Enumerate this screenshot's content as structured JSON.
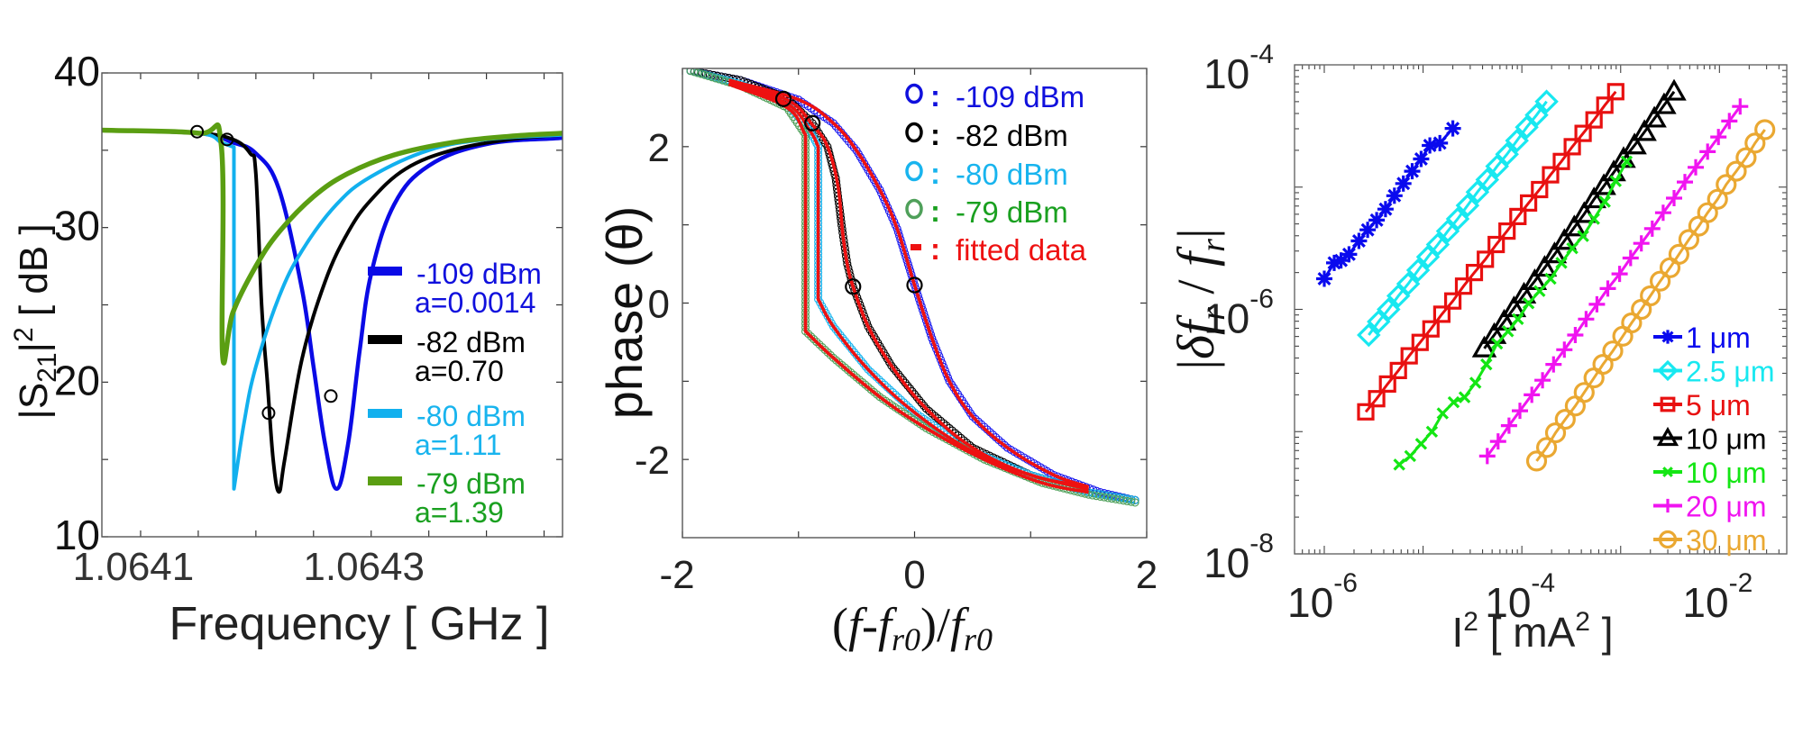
{
  "chart_data": [
    {
      "type": "line",
      "id": "transmission",
      "title": "",
      "xlabel": "Frequency [ GHz ]",
      "ylabel_parts": {
        "pre": "|S",
        "sub": "21",
        "mid": "|",
        "sup": "2",
        "post": " [ dB ]"
      },
      "xlim": [
        1.0640664,
        1.064466
      ],
      "ylim": [
        10,
        40
      ],
      "xticks": [
        1.0641,
        1.0643
      ],
      "xtick_labels": [
        "1.0641",
        "1.0643"
      ],
      "xminor_step": 5e-05,
      "yticks": [
        10,
        20,
        30,
        40
      ],
      "ytick_labels": [
        "10",
        "20",
        "30",
        "40"
      ],
      "yminor_step": 5,
      "grid": false,
      "legend_position": "right-lower",
      "series": [
        {
          "name": "-109 dBm",
          "param": "a=0.0014",
          "color": "#0a0ae6",
          "text_color": "#1010dd",
          "x": [
            1.0640664,
            1.06415,
            1.06418,
            1.0642,
            1.06422,
            1.06424,
            1.06425,
            1.06426,
            1.06427,
            1.06428,
            1.06429,
            1.0643,
            1.06432,
            1.06435,
            1.0644,
            1.064466
          ],
          "y": [
            36.3,
            36.1,
            35.5,
            34.8,
            32.5,
            26.0,
            21.0,
            16.0,
            13.1,
            16.0,
            22.0,
            27.0,
            31.5,
            34.0,
            35.4,
            35.8
          ]
        },
        {
          "name": "-82 dBm",
          "param": "a=0.70",
          "color": "#000000",
          "text_color": "#000000",
          "x": [
            1.0640664,
            1.06415,
            1.06418,
            1.064195,
            1.0642,
            1.064205,
            1.06421,
            1.064215,
            1.06422,
            1.064225,
            1.06424,
            1.06426,
            1.06428,
            1.0643,
            1.06433,
            1.06437,
            1.06442,
            1.064466
          ],
          "y": [
            36.3,
            36.1,
            35.7,
            34.8,
            33.5,
            25.0,
            20.0,
            15.0,
            12.9,
            15.0,
            21.5,
            26.5,
            29.7,
            31.8,
            33.8,
            35.0,
            35.7,
            36.0
          ]
        },
        {
          "name": "-80 dBm",
          "param": "a=1.11",
          "color": "#12b0ee",
          "text_color": "#18b4ee",
          "x": [
            1.0640664,
            1.06415,
            1.06417,
            1.064181,
            1.064181,
            1.06419,
            1.0642,
            1.06422,
            1.06424,
            1.06427,
            1.0643,
            1.06435,
            1.0644,
            1.064466
          ],
          "y": [
            36.3,
            36.1,
            35.5,
            35.2,
            13.1,
            17.5,
            21.0,
            25.5,
            28.5,
            31.5,
            33.3,
            35.0,
            35.7,
            36.0
          ]
        },
        {
          "name": "-79 dBm",
          "param": "a=1.39",
          "color": "#5a9e12",
          "text_color": "#1aa020",
          "x": [
            1.0640664,
            1.06415,
            1.06417,
            1.064171,
            1.06418,
            1.0642,
            1.06422,
            1.06425,
            1.06428,
            1.06432,
            1.06437,
            1.06442,
            1.064466
          ],
          "y": [
            36.3,
            36.1,
            35.3,
            21.8,
            24.5,
            27.5,
            29.7,
            32.0,
            33.5,
            34.7,
            35.5,
            35.9,
            36.1
          ]
        }
      ],
      "markers": {
        "x": [
          1.064149,
          1.064175,
          1.064211,
          1.064265
        ],
        "y": [
          36.2,
          35.7,
          18.0,
          19.1
        ]
      }
    },
    {
      "type": "line",
      "id": "phase",
      "title": "",
      "xlabel_parts": [
        "(",
        "f",
        "-",
        "f",
        "r0",
        ")/",
        "f",
        "r0"
      ],
      "ylabel": "phase (θ)",
      "xlim": [
        -2,
        2
      ],
      "ylim": [
        -3,
        3
      ],
      "xticks": [
        -2,
        0,
        2
      ],
      "xtick_labels": [
        "-2",
        "0",
        "2"
      ],
      "xminor_ticks": [
        -1,
        1
      ],
      "yticks": [
        -2,
        0,
        2
      ],
      "ytick_labels": [
        "-2",
        "0",
        "2"
      ],
      "yminor_ticks": [
        -1,
        1
      ],
      "grid": false,
      "legend_position": "top-right",
      "series": [
        {
          "name": "-109 dBm",
          "marker": "o",
          "color": "#1a1aee",
          "x": [
            -1.93,
            -1.5,
            -1.0,
            -0.7,
            -0.5,
            -0.3,
            -0.15,
            0.0,
            0.15,
            0.3,
            0.5,
            0.8,
            1.2,
            1.6,
            1.9
          ],
          "y": [
            2.97,
            2.85,
            2.6,
            2.3,
            1.95,
            1.45,
            0.95,
            0.23,
            -0.45,
            -1.0,
            -1.45,
            -1.85,
            -2.2,
            -2.42,
            -2.52
          ]
        },
        {
          "name": "-82 dBm",
          "marker": "o",
          "color": "#000000",
          "x": [
            -1.93,
            -1.5,
            -1.1,
            -0.88,
            -0.75,
            -0.68,
            -0.62,
            -0.58,
            -0.53,
            -0.4,
            -0.2,
            0.1,
            0.5,
            1.0,
            1.5,
            1.9
          ],
          "y": [
            2.97,
            2.85,
            2.62,
            2.3,
            2.0,
            1.6,
            0.9,
            0.5,
            0.21,
            -0.3,
            -0.8,
            -1.35,
            -1.85,
            -2.2,
            -2.42,
            -2.52
          ]
        },
        {
          "name": "-80 dBm",
          "marker": "o",
          "color": "#18b4ee",
          "x": [
            -1.93,
            -1.5,
            -1.1,
            -0.9,
            -0.83,
            -0.83,
            -0.7,
            -0.4,
            0.0,
            0.5,
            1.0,
            1.5,
            1.9
          ],
          "y": [
            2.97,
            2.8,
            2.55,
            2.2,
            2.0,
            0.05,
            -0.3,
            -0.85,
            -1.4,
            -1.9,
            -2.2,
            -2.42,
            -2.52
          ]
        },
        {
          "name": "-79 dBm",
          "marker": "o",
          "color": "#4fa05a",
          "x": [
            -1.93,
            -1.5,
            -1.1,
            -0.94,
            -0.94,
            -0.7,
            -0.3,
            0.1,
            0.6,
            1.1,
            1.5,
            1.9
          ],
          "y": [
            2.97,
            2.78,
            2.5,
            2.15,
            -0.36,
            -0.7,
            -1.2,
            -1.6,
            -2.0,
            -2.3,
            -2.45,
            -2.55
          ]
        }
      ],
      "fits": {
        "name": "fitted data",
        "color": "#ee1111",
        "curves": [
          {
            "x": [
              -1.6,
              -1.0,
              -0.7,
              -0.5,
              -0.3,
              -0.15,
              0.0,
              0.15,
              0.3,
              0.5,
              0.8,
              1.2,
              1.5
            ],
            "y": [
              2.85,
              2.6,
              2.3,
              1.95,
              1.45,
              0.95,
              0.23,
              -0.45,
              -1.0,
              -1.45,
              -1.85,
              -2.2,
              -2.35
            ]
          },
          {
            "x": [
              -1.6,
              -1.1,
              -0.88,
              -0.75,
              -0.66,
              -0.62,
              -0.58,
              -0.53,
              -0.4,
              -0.2,
              0.1,
              0.5,
              1.0,
              1.5
            ],
            "y": [
              2.82,
              2.6,
              2.28,
              2.0,
              1.5,
              0.9,
              0.5,
              0.21,
              -0.3,
              -0.8,
              -1.35,
              -1.85,
              -2.2,
              -2.35
            ]
          },
          {
            "x": [
              -1.6,
              -1.1,
              -0.9,
              -0.83,
              -0.83,
              -0.7,
              -0.4,
              0.0,
              0.5,
              1.0,
              1.5
            ],
            "y": [
              2.8,
              2.55,
              2.2,
              2.0,
              0.05,
              -0.3,
              -0.85,
              -1.4,
              -1.9,
              -2.2,
              -2.38
            ]
          },
          {
            "x": [
              -1.6,
              -1.1,
              -0.94,
              -0.94,
              -0.7,
              -0.3,
              0.1,
              0.6,
              1.1,
              1.5
            ],
            "y": [
              2.8,
              2.5,
              2.15,
              -0.36,
              -0.7,
              -1.2,
              -1.6,
              -2.0,
              -2.3,
              -2.42
            ]
          }
        ]
      },
      "markers": {
        "x": [
          -1.13,
          -0.88,
          -0.53,
          0.0
        ],
        "y": [
          2.61,
          2.3,
          0.21,
          0.23
        ]
      },
      "legend": [
        {
          "symbol": "o",
          "sep": ":",
          "label": "-109 dBm",
          "color": "#1010dd"
        },
        {
          "symbol": "o",
          "sep": ":",
          "label": "-82 dBm",
          "color": "#000000"
        },
        {
          "symbol": "o",
          "sep": ":",
          "label": "-80 dBm",
          "color": "#18b4ee"
        },
        {
          "symbol": "o",
          "sep": ":",
          "label": "-79 dBm",
          "color": "#1aa020",
          "symbol_color": "#4fa05a"
        },
        {
          "symbol": "-",
          "sep": ":",
          "label": "fitted data",
          "color": "#ee1111"
        }
      ]
    },
    {
      "type": "scatter",
      "id": "frequency-shift",
      "title": "",
      "xscale": "log",
      "yscale": "log",
      "xlabel_parts": {
        "pre": "I",
        "sup": "2",
        "post": " [ mA",
        "sup2": "2",
        "end": " ]"
      },
      "ylabel_parts": [
        "|",
        "δf",
        "r",
        " / ",
        "f",
        "r",
        "|"
      ],
      "xlim": [
        5e-07,
        0.048
      ],
      "ylim": [
        1e-08,
        0.0001
      ],
      "xticks": [
        1e-06,
        0.0001,
        0.01
      ],
      "xtick_labels": [
        {
          "base": "10",
          "exp": "-6"
        },
        {
          "base": "10",
          "exp": "-4"
        },
        {
          "base": "10",
          "exp": "-2"
        }
      ],
      "yticks": [
        1e-08,
        1e-06,
        0.0001
      ],
      "ytick_labels": [
        {
          "base": "10",
          "exp": "-8"
        },
        {
          "base": "10",
          "exp": "-6"
        },
        {
          "base": "10",
          "exp": "-4"
        }
      ],
      "grid": false,
      "legend_position": "bottom-right",
      "series": [
        {
          "name": "1 μm",
          "marker": "asterisk",
          "color": "#0a0aee",
          "x": [
            1e-06,
            1.26e-06,
            1.48e-06,
            1.78e-06,
            2.24e-06,
            2.75e-06,
            3.39e-06,
            4.17e-06,
            5.13e-06,
            6.31e-06,
            7.76e-06,
            9.55e-06,
            1.17e-05,
            1.48e-05,
            2e-05
          ],
          "y": [
            1.78e-06,
            2.4e-06,
            2.51e-06,
            2.82e-06,
            3.63e-06,
            4.47e-06,
            5.37e-06,
            6.61e-06,
            8.51e-06,
            1.07e-05,
            1.35e-05,
            1.7e-05,
            2.19e-05,
            2.29e-05,
            3.02e-05
          ]
        },
        {
          "name": "2.5 μm",
          "marker": "diamond",
          "color": "#18e8f0",
          "x": [
            2.82e-06,
            3.55e-06,
            4.47e-06,
            5.62e-06,
            7.08e-06,
            8.91e-06,
            1.12e-05,
            1.41e-05,
            1.78e-05,
            2.24e-05,
            2.82e-05,
            3.55e-05,
            4.47e-05,
            5.62e-05,
            7.08e-05,
            8.91e-05,
            0.000112,
            0.000141,
            0.000178
          ],
          "y": [
            6.17e-07,
            7.94e-07,
            1e-06,
            1.29e-06,
            1.62e-06,
            2.09e-06,
            2.69e-06,
            3.39e-06,
            4.37e-06,
            5.5e-06,
            7.08e-06,
            9.12e-06,
            1.15e-05,
            1.48e-05,
            1.86e-05,
            2.4e-05,
            3.09e-05,
            3.89e-05,
            5.01e-05
          ]
        },
        {
          "name": "5 μm",
          "marker": "square",
          "color": "#e81010",
          "x": [
            2.63e-06,
            3.39e-06,
            4.37e-06,
            5.62e-06,
            7.24e-06,
            9.33e-06,
            1.2e-05,
            1.55e-05,
            2e-05,
            2.57e-05,
            3.31e-05,
            4.27e-05,
            5.5e-05,
            7.08e-05,
            9.12e-05,
            0.000117,
            0.000151,
            0.000195,
            0.000251,
            0.000324,
            0.000417,
            0.000537,
            0.000692,
            0.000891
          ],
          "y": [
            1.45e-07,
            1.86e-07,
            2.45e-07,
            3.16e-07,
            4.17e-07,
            5.37e-07,
            6.92e-07,
            9.12e-07,
            1.17e-06,
            1.55e-06,
            2e-06,
            2.57e-06,
            3.39e-06,
            4.37e-06,
            5.75e-06,
            7.41e-06,
            9.55e-06,
            1.26e-05,
            1.62e-05,
            2.14e-05,
            2.75e-05,
            3.55e-05,
            4.68e-05,
            6.03e-05
          ]
        },
        {
          "name": "10 μm",
          "marker": "triangle",
          "color": "#000000",
          "x": [
            4.17e-05,
            5.25e-05,
            6.61e-05,
            8.32e-05,
            0.000105,
            0.000135,
            0.00017,
            0.000214,
            0.000269,
            0.000339,
            0.000427,
            0.000537,
            0.000676,
            0.000851,
            0.00107,
            0.00138,
            0.00174,
            0.00219,
            0.00275,
            0.00347
          ],
          "y": [
            4.79e-07,
            6.17e-07,
            7.94e-07,
            1.02e-06,
            1.32e-06,
            1.7e-06,
            2.19e-06,
            2.82e-06,
            3.63e-06,
            4.68e-06,
            6.03e-06,
            7.94e-06,
            1.02e-05,
            1.32e-05,
            1.7e-05,
            2.19e-05,
            2.82e-05,
            3.63e-05,
            4.68e-05,
            6.03e-05
          ]
        },
        {
          "name": "10 μm",
          "marker": "x",
          "color": "#14e614",
          "x": [
            5.75e-06,
            7.41e-06,
            9.55e-06,
            1.23e-05,
            1.58e-05,
            2.04e-05,
            2.63e-05,
            3.39e-05,
            4.37e-05,
            5.62e-05,
            7.24e-05,
            9.12e-05,
            0.000117,
            0.000151,
            0.000195,
            0.000251,
            0.000324,
            0.000417,
            0.000537,
            0.000692,
            0.000891,
            0.00115
          ],
          "y": [
            5.37e-08,
            6.31e-08,
            7.94e-08,
            1e-07,
            1.41e-07,
            1.74e-07,
            1.91e-07,
            2.51e-07,
            3.55e-07,
            5.25e-07,
            6.61e-07,
            8.32e-07,
            1.12e-06,
            1.41e-06,
            1.78e-06,
            2.4e-06,
            3.16e-06,
            3.98e-06,
            5.5e-06,
            7.59e-06,
            1.12e-05,
            1.62e-05
          ]
        },
        {
          "name": "20 μm",
          "marker": "plus",
          "color": "#f014f0",
          "x": [
            4.47e-05,
            5.75e-05,
            7.41e-05,
            9.55e-05,
            0.000126,
            0.000162,
            0.000209,
            0.000269,
            0.000347,
            0.000447,
            0.000575,
            0.000741,
            0.000977,
            0.00126,
            0.00162,
            0.00209,
            0.00269,
            0.00347,
            0.00447,
            0.00575,
            0.00759,
            0.00977,
            0.0126,
            0.0162
          ],
          "y": [
            6.31e-08,
            8.32e-08,
            1.12e-07,
            1.48e-07,
            2e-07,
            2.63e-07,
            3.55e-07,
            4.68e-07,
            6.17e-07,
            8.32e-07,
            1.1e-06,
            1.48e-06,
            1.95e-06,
            2.63e-06,
            3.47e-06,
            4.57e-06,
            6.17e-06,
            8.13e-06,
            1.1e-05,
            1.45e-05,
            1.95e-05,
            2.57e-05,
            3.47e-05,
            4.57e-05
          ]
        },
        {
          "name": "30 μm",
          "marker": "circle",
          "color": "#eaa832",
          "x": [
            0.000141,
            0.000178,
            0.000219,
            0.000275,
            0.000347,
            0.000427,
            0.000537,
            0.000661,
            0.000832,
            0.00105,
            0.00129,
            0.00162,
            0.002,
            0.00251,
            0.00316,
            0.00389,
            0.0049,
            0.00617,
            0.00759,
            0.00955,
            0.0117,
            0.0148,
            0.0186,
            0.0229,
            0.0288
          ],
          "y": [
            5.75e-08,
            7.41e-08,
            9.77e-08,
            1.26e-07,
            1.62e-07,
            2.09e-07,
            2.75e-07,
            3.55e-07,
            4.57e-07,
            6.03e-07,
            7.76e-07,
            1e-06,
            1.29e-06,
            1.7e-06,
            2.19e-06,
            2.82e-06,
            3.72e-06,
            4.79e-06,
            6.17e-06,
            7.94e-06,
            1.05e-05,
            1.35e-05,
            1.74e-05,
            2.29e-05,
            2.95e-05
          ]
        }
      ]
    }
  ]
}
